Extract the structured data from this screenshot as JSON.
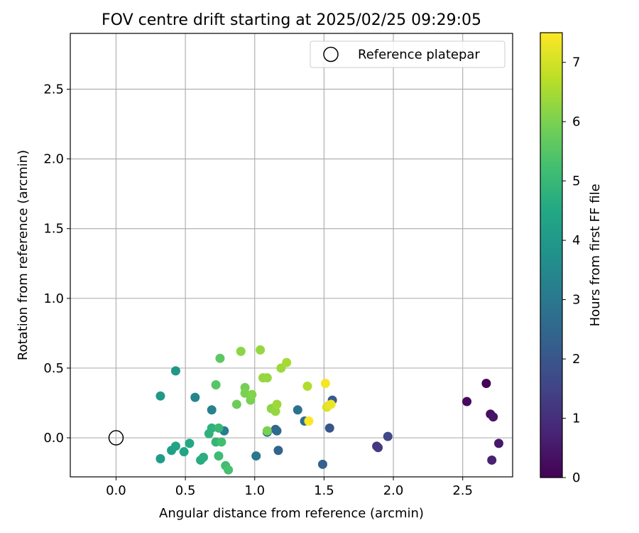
{
  "chart_data": {
    "type": "scatter",
    "title": "FOV centre drift starting at 2025/02/25 09:29:05",
    "xlabel": "Angular distance from reference (arcmin)",
    "ylabel": "Rotation from reference (arcmin)",
    "xlim": [
      -0.33,
      2.86
    ],
    "ylim": [
      -0.28,
      2.9
    ],
    "xticks": [
      0.0,
      0.5,
      1.0,
      1.5,
      2.0,
      2.5
    ],
    "xtick_labels": [
      "0.0",
      "0.5",
      "1.0",
      "1.5",
      "2.0",
      "2.5"
    ],
    "yticks": [
      0.0,
      0.5,
      1.0,
      1.5,
      2.0,
      2.5
    ],
    "ytick_labels": [
      "0.0",
      "0.5",
      "1.0",
      "1.5",
      "2.0",
      "2.5"
    ],
    "grid": true,
    "legend": {
      "placement": "top-right",
      "entries": [
        "Reference platepar"
      ]
    },
    "reference_point": {
      "x": 0.0,
      "y": 0.0,
      "name": "Reference platepar"
    },
    "colorbar": {
      "label": "Hours from first FF file",
      "colormap": "viridis",
      "range": [
        0,
        7.5
      ],
      "ticks": [
        0,
        1,
        2,
        3,
        4,
        5,
        6,
        7
      ],
      "tick_labels": [
        "0",
        "1",
        "2",
        "3",
        "4",
        "5",
        "6",
        "7"
      ]
    },
    "points": [
      {
        "x": 2.67,
        "y": 0.39,
        "c": 0.05
      },
      {
        "x": 2.53,
        "y": 0.26,
        "c": 0.2
      },
      {
        "x": 2.7,
        "y": 0.17,
        "c": 0.3
      },
      {
        "x": 2.72,
        "y": 0.15,
        "c": 0.4
      },
      {
        "x": 2.76,
        "y": -0.04,
        "c": 0.5
      },
      {
        "x": 2.71,
        "y": -0.16,
        "c": 0.7
      },
      {
        "x": 1.96,
        "y": 0.01,
        "c": 1.6
      },
      {
        "x": 1.88,
        "y": -0.06,
        "c": 1.2
      },
      {
        "x": 1.89,
        "y": -0.07,
        "c": 1.3
      },
      {
        "x": 1.54,
        "y": 0.07,
        "c": 2.0
      },
      {
        "x": 1.56,
        "y": 0.27,
        "c": 2.1
      },
      {
        "x": 1.49,
        "y": -0.19,
        "c": 2.3
      },
      {
        "x": 1.31,
        "y": 0.2,
        "c": 2.8
      },
      {
        "x": 1.36,
        "y": 0.12,
        "c": 2.7
      },
      {
        "x": 1.17,
        "y": -0.09,
        "c": 2.4
      },
      {
        "x": 1.15,
        "y": 0.06,
        "c": 2.5
      },
      {
        "x": 1.16,
        "y": 0.05,
        "c": 2.6
      },
      {
        "x": 1.09,
        "y": 0.04,
        "c": 2.9
      },
      {
        "x": 1.01,
        "y": -0.13,
        "c": 3.0
      },
      {
        "x": 0.78,
        "y": 0.05,
        "c": 3.1
      },
      {
        "x": 0.69,
        "y": 0.2,
        "c": 3.3
      },
      {
        "x": 0.57,
        "y": 0.29,
        "c": 3.4
      },
      {
        "x": 0.43,
        "y": 0.48,
        "c": 3.9
      },
      {
        "x": 0.32,
        "y": 0.3,
        "c": 4.0
      },
      {
        "x": 0.32,
        "y": -0.15,
        "c": 4.1
      },
      {
        "x": 0.4,
        "y": -0.09,
        "c": 4.2
      },
      {
        "x": 0.43,
        "y": -0.06,
        "c": 4.3
      },
      {
        "x": 0.49,
        "y": -0.1,
        "c": 4.4
      },
      {
        "x": 0.53,
        "y": -0.04,
        "c": 4.5
      },
      {
        "x": 0.61,
        "y": -0.16,
        "c": 4.6
      },
      {
        "x": 0.63,
        "y": -0.14,
        "c": 4.7
      },
      {
        "x": 0.67,
        "y": 0.03,
        "c": 4.8
      },
      {
        "x": 0.69,
        "y": 0.07,
        "c": 4.8
      },
      {
        "x": 0.72,
        "y": -0.03,
        "c": 4.9
      },
      {
        "x": 0.74,
        "y": 0.07,
        "c": 5.0
      },
      {
        "x": 0.74,
        "y": -0.13,
        "c": 5.1
      },
      {
        "x": 0.76,
        "y": -0.03,
        "c": 5.2
      },
      {
        "x": 0.79,
        "y": -0.2,
        "c": 5.2
      },
      {
        "x": 0.81,
        "y": -0.23,
        "c": 5.3
      },
      {
        "x": 0.72,
        "y": 0.38,
        "c": 5.5
      },
      {
        "x": 0.75,
        "y": 0.57,
        "c": 5.6
      },
      {
        "x": 0.87,
        "y": 0.24,
        "c": 5.8
      },
      {
        "x": 0.93,
        "y": 0.36,
        "c": 5.9
      },
      {
        "x": 0.93,
        "y": 0.32,
        "c": 6.0
      },
      {
        "x": 0.97,
        "y": 0.27,
        "c": 6.0
      },
      {
        "x": 0.98,
        "y": 0.31,
        "c": 6.1
      },
      {
        "x": 0.9,
        "y": 0.62,
        "c": 6.2
      },
      {
        "x": 1.04,
        "y": 0.63,
        "c": 6.3
      },
      {
        "x": 1.06,
        "y": 0.43,
        "c": 6.3
      },
      {
        "x": 1.09,
        "y": 0.43,
        "c": 6.3
      },
      {
        "x": 1.09,
        "y": 0.05,
        "c": 6.0
      },
      {
        "x": 1.12,
        "y": 0.21,
        "c": 6.2
      },
      {
        "x": 1.15,
        "y": 0.19,
        "c": 6.3
      },
      {
        "x": 1.16,
        "y": 0.24,
        "c": 6.4
      },
      {
        "x": 1.19,
        "y": 0.5,
        "c": 6.4
      },
      {
        "x": 1.23,
        "y": 0.54,
        "c": 6.5
      },
      {
        "x": 1.38,
        "y": 0.37,
        "c": 6.6
      },
      {
        "x": 1.39,
        "y": 0.12,
        "c": 7.5
      },
      {
        "x": 1.51,
        "y": 0.39,
        "c": 7.4
      },
      {
        "x": 1.52,
        "y": 0.22,
        "c": 7.0
      },
      {
        "x": 1.53,
        "y": 0.23,
        "c": 7.2
      },
      {
        "x": 1.55,
        "y": 0.24,
        "c": 7.3
      }
    ]
  }
}
